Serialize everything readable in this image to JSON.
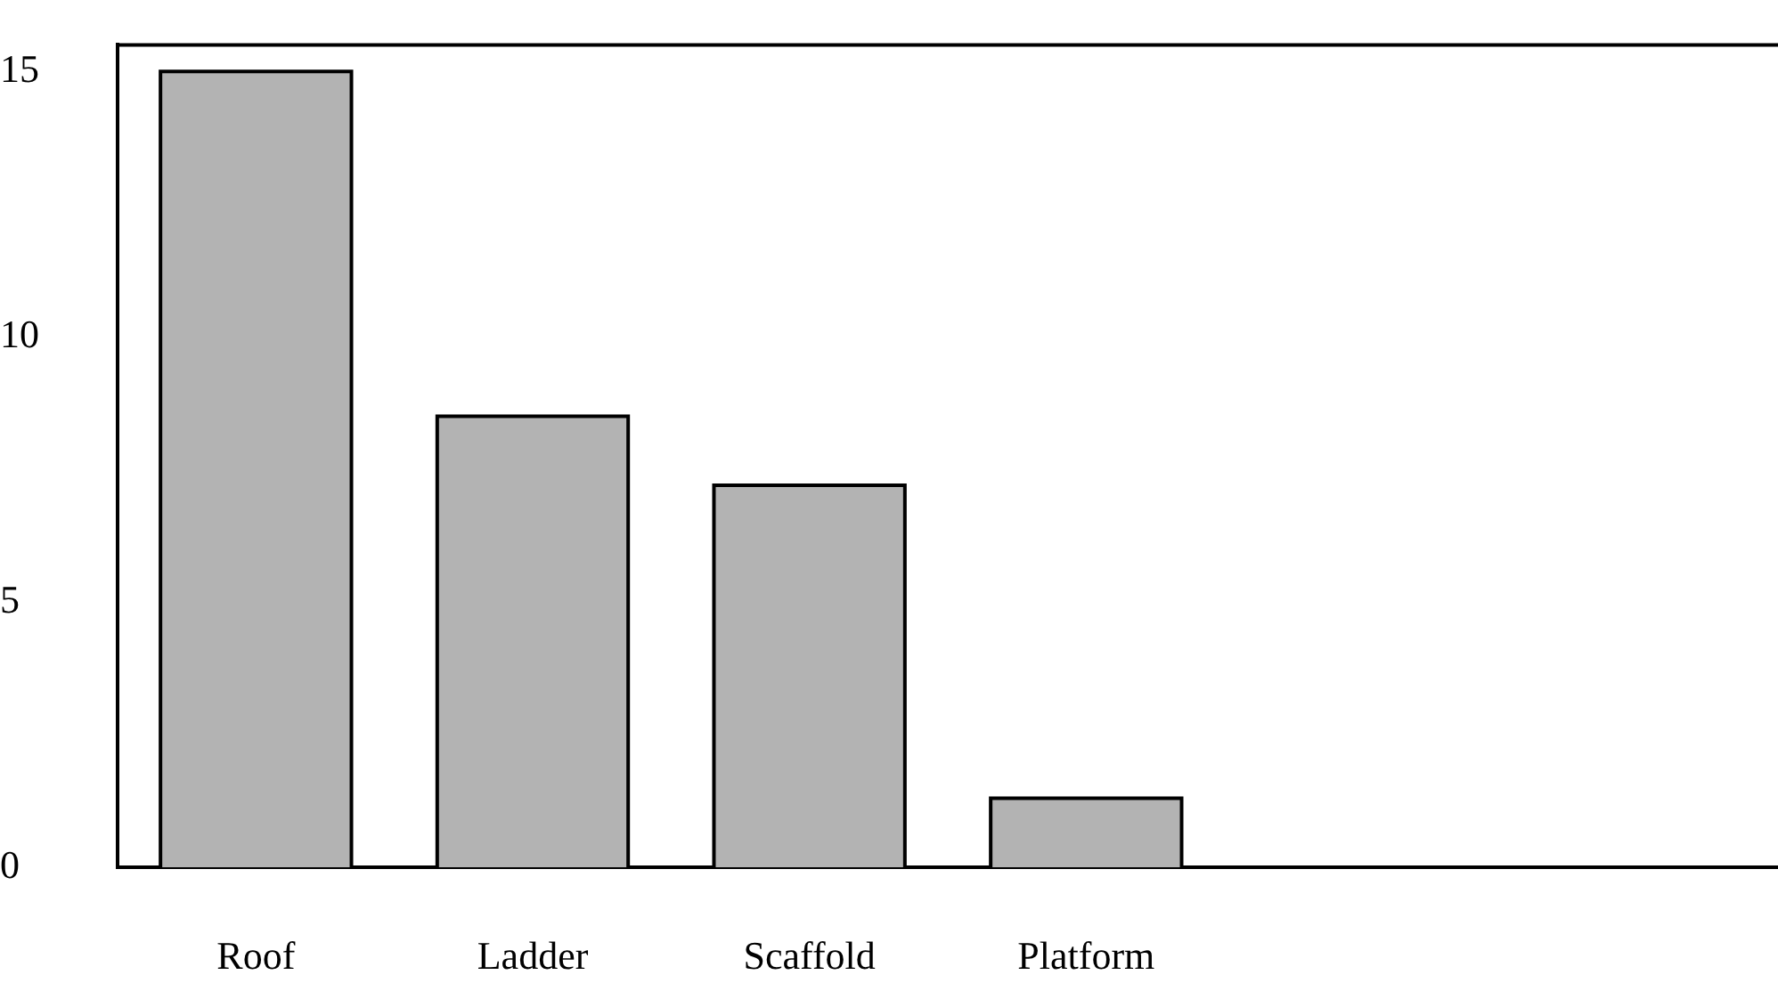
{
  "chart_data": {
    "type": "bar",
    "categories": [
      "Roof",
      "Ladder",
      "Scaffold",
      "Platform",
      null,
      null
    ],
    "values": [
      15,
      8.5,
      7.2,
      1.3,
      null,
      null
    ],
    "color": "#b3b3b3",
    "ylim": [
      0,
      15.5
    ],
    "yticks": [
      0,
      5,
      10,
      15
    ],
    "grid": false,
    "legend": false
  }
}
